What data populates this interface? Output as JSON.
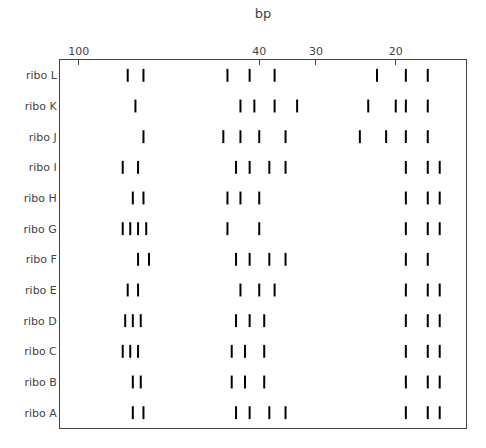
{
  "chart_data": {
    "type": "gel",
    "categories": [
      "ribo L",
      "ribo K",
      "ribo J",
      "ribo I",
      "ribo H",
      "ribo G",
      "ribo F",
      "ribo E",
      "ribo D",
      "ribo C",
      "ribo B",
      "ribo A"
    ],
    "values": [
      [
        78,
        72,
        47,
        42,
        37,
        22,
        19,
        17
      ],
      [
        75,
        44,
        41,
        37,
        33,
        23,
        20,
        19,
        17
      ],
      [
        72,
        48,
        44,
        40,
        35,
        24,
        21,
        19,
        17
      ],
      [
        80,
        74,
        45,
        42,
        38,
        35,
        19,
        17,
        16
      ],
      [
        76,
        72,
        47,
        44,
        40,
        19,
        17,
        16
      ],
      [
        80,
        77,
        74,
        71,
        47,
        40,
        19,
        17,
        16
      ],
      [
        74,
        70,
        45,
        42,
        38,
        35,
        19,
        17
      ],
      [
        78,
        74,
        44,
        40,
        37,
        19,
        17,
        16
      ],
      [
        79,
        76,
        73,
        45,
        42,
        39,
        19,
        17,
        16
      ],
      [
        80,
        77,
        74,
        46,
        43,
        39,
        19,
        17,
        16
      ],
      [
        76,
        73,
        46,
        43,
        39,
        19,
        17,
        16
      ],
      [
        76,
        72,
        45,
        42,
        38,
        35,
        19,
        17,
        16
      ]
    ],
    "xlabel": "bp",
    "xlim": [
      110,
      14
    ],
    "xticks": [
      100,
      40,
      30,
      20
    ],
    "log": "x",
    "grid": false,
    "color": "#000000"
  }
}
